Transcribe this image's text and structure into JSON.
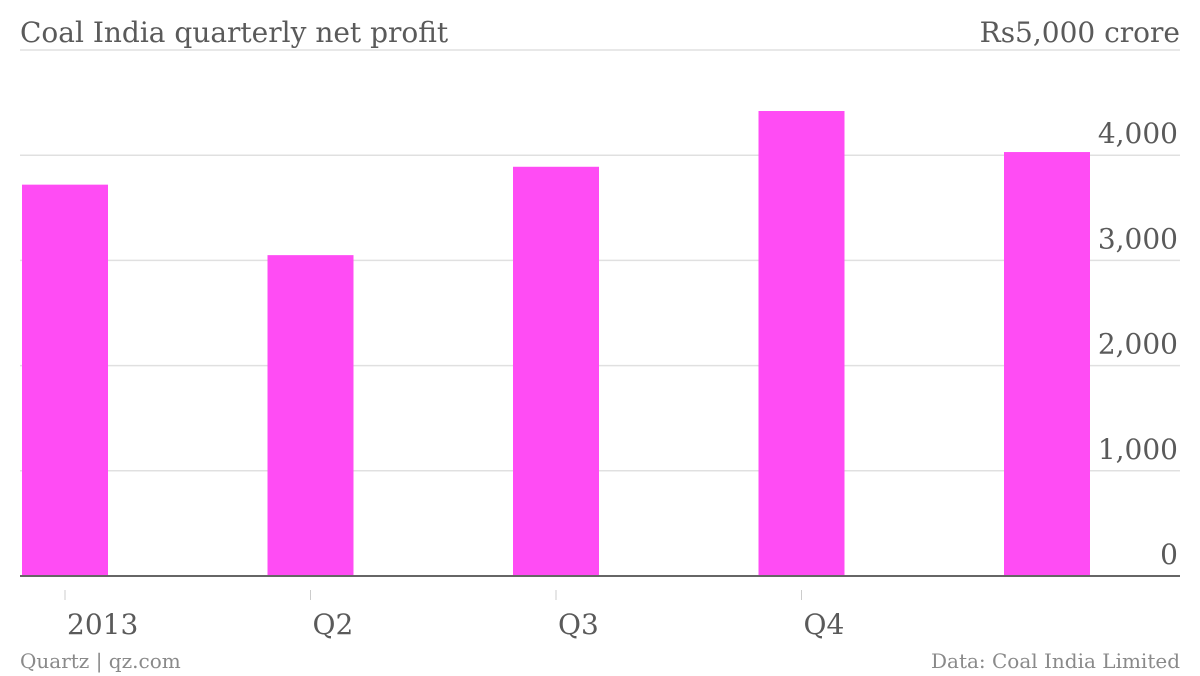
{
  "chart_data": {
    "type": "bar",
    "title": "Coal India quarterly net profit",
    "top_right_label": "Rs5,000 crore",
    "categories": [
      "2013",
      "Q2",
      "Q3",
      "Q4",
      ""
    ],
    "series": [
      {
        "values": [
          3720,
          3050,
          3890,
          4420,
          4030
        ],
        "color": "#ff4cf4"
      }
    ],
    "ylim": [
      0,
      5000
    ],
    "yticks": [
      0,
      1000,
      2000,
      3000,
      4000
    ],
    "ytick_labels": [
      "0",
      "1,000",
      "2,000",
      "3,000",
      "4,000"
    ],
    "grid": true,
    "axis_side": "right",
    "xlabel": "",
    "ylabel": ""
  },
  "footer": {
    "left": "Quartz | qz.com",
    "right": "Data: Coal India Limited"
  },
  "colors": {
    "bar": "#ff4cf4",
    "grid": "#e0e0e0",
    "axis": "#666666",
    "text": "#5a5a5a"
  }
}
